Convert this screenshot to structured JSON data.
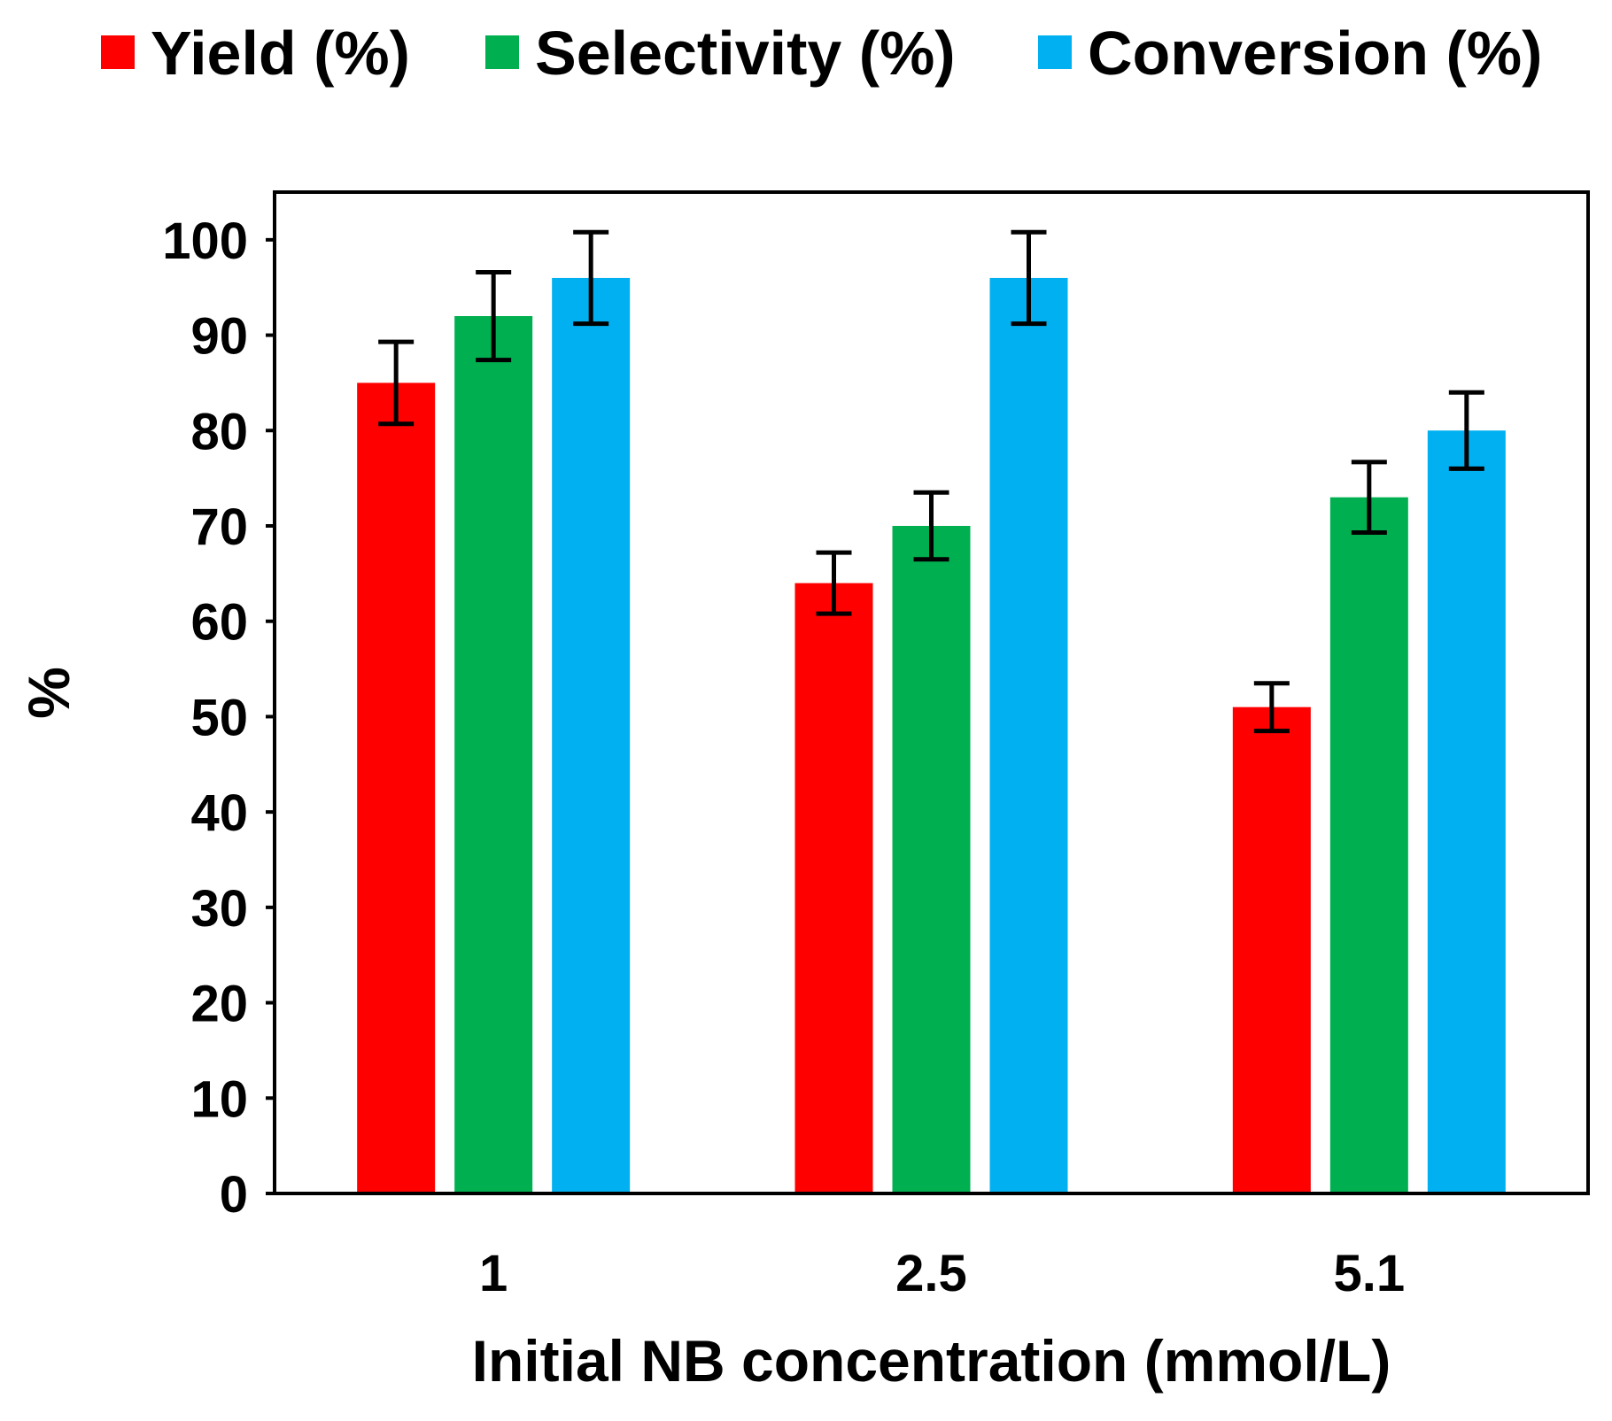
{
  "chart_data": {
    "type": "bar",
    "title": "",
    "xlabel": "Initial NB concentration (mmol/L)",
    "ylabel": "%",
    "categories": [
      "1",
      "2.5",
      "5.1"
    ],
    "ylim": [
      0,
      105
    ],
    "yticks": [
      "0",
      "10",
      "20",
      "30",
      "40",
      "50",
      "60",
      "70",
      "80",
      "90",
      "100"
    ],
    "grid": false,
    "legend_position": "top",
    "series": [
      {
        "name": "Yield (%)",
        "color": "#ff0000",
        "values": [
          85,
          64,
          51
        ],
        "errors": [
          4.3,
          3.2,
          2.5
        ]
      },
      {
        "name": "Selectivity (%)",
        "color": "#00b050",
        "values": [
          92,
          70,
          73
        ],
        "errors": [
          4.6,
          3.5,
          3.7
        ]
      },
      {
        "name": "Conversion (%)",
        "color": "#00b0f0",
        "values": [
          96,
          96,
          80
        ],
        "errors": [
          4.8,
          4.8,
          4.0
        ]
      }
    ]
  }
}
